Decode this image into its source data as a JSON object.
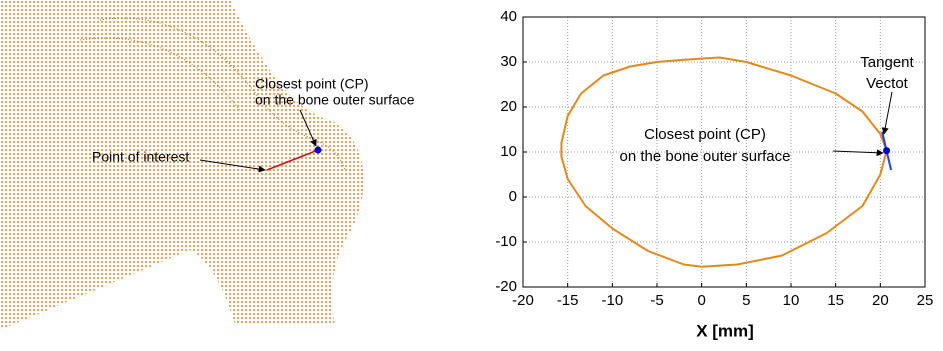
{
  "left_panel": {
    "annotations": [
      {
        "lines": [
          "Closest point (CP)",
          "on the bone outer surface"
        ]
      },
      {
        "lines": [
          "Point of interest"
        ]
      }
    ]
  },
  "chart_data": {
    "type": "line",
    "xlabel": "X [mm]",
    "xlim": [
      -20,
      25
    ],
    "xticks": [
      -20,
      -15,
      -10,
      -5,
      0,
      5,
      10,
      15,
      20,
      25
    ],
    "ylim": [
      -20,
      40
    ],
    "yticks": [
      -20,
      -10,
      0,
      10,
      20,
      30,
      40
    ],
    "grid": true,
    "series": [
      {
        "color": "#e08a1e",
        "x": [
          20.7,
          20,
          18,
          15,
          10,
          5,
          2,
          -2,
          -5,
          -8,
          -11,
          -13.5,
          -15,
          -15.7,
          -15.7,
          -15,
          -13,
          -10,
          -6,
          -2,
          0,
          4,
          9,
          14,
          18,
          20,
          20.7
        ],
        "values": [
          10.3,
          14,
          19,
          23,
          27,
          30,
          31,
          30.5,
          30,
          29,
          27,
          23,
          18,
          12,
          9,
          4,
          -2,
          -7,
          -12,
          -15,
          -15.5,
          -15,
          -13,
          -8,
          -2,
          5,
          10.3
        ]
      },
      {
        "color": "#2040ff",
        "x": [
          21.2,
          20.2
        ],
        "values": [
          6,
          14.5
        ]
      },
      {
        "color": "#0000cc",
        "x": [
          20.7
        ],
        "values": [
          10.3
        ]
      }
    ],
    "annotations": [
      {
        "lines": [
          "Closest point (CP)",
          "on the bone outer surface"
        ]
      },
      {
        "lines": [
          "Tangent",
          "Vectot"
        ]
      }
    ]
  }
}
